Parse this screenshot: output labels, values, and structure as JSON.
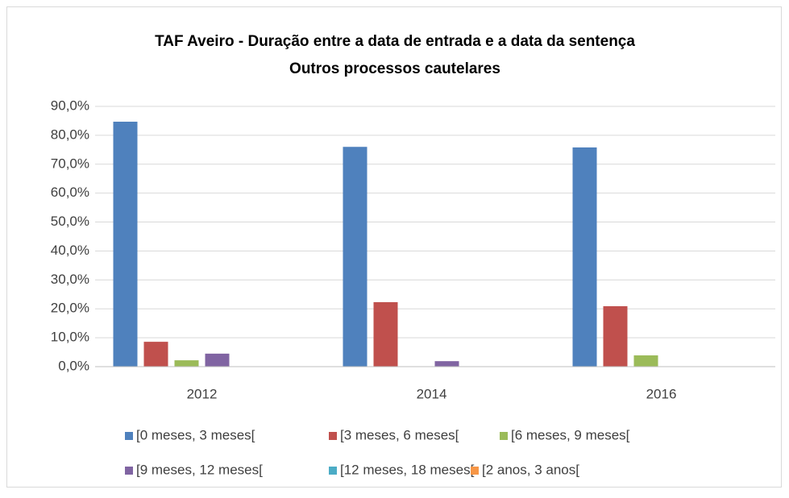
{
  "chart_data": {
    "type": "bar",
    "title": "TAF Aveiro - Duração entre a data de entrada e a data da sentença",
    "subtitle": "Outros processos cautelares",
    "categories": [
      "2012",
      "2014",
      "2016"
    ],
    "series": [
      {
        "name": "[0 meses, 3 meses[",
        "color": "#4f81bd",
        "values": [
          84.7,
          76.0,
          75.8
        ]
      },
      {
        "name": "[3 meses, 6 meses[",
        "color": "#c0504d",
        "values": [
          8.6,
          22.3,
          20.9
        ]
      },
      {
        "name": "[6 meses, 9 meses[",
        "color": "#9bbb59",
        "values": [
          2.2,
          0,
          3.9
        ]
      },
      {
        "name": "[9 meses, 12 meses[",
        "color": "#8064a2",
        "values": [
          4.5,
          1.9,
          0
        ]
      },
      {
        "name": "[12 meses, 18 meses[",
        "color": "#4bacc6",
        "values": [
          0,
          0,
          0
        ]
      },
      {
        "name": "[2 anos, 3 anos[",
        "color": "#f79646",
        "values": [
          0,
          0,
          0
        ]
      }
    ],
    "ylim": [
      0,
      90
    ],
    "yticks": [
      {
        "value": 0,
        "label": "0,0%"
      },
      {
        "value": 10,
        "label": "10,0%"
      },
      {
        "value": 20,
        "label": "20,0%"
      },
      {
        "value": 30,
        "label": "30,0%"
      },
      {
        "value": 40,
        "label": "40,0%"
      },
      {
        "value": 50,
        "label": "50,0%"
      },
      {
        "value": 60,
        "label": "60,0%"
      },
      {
        "value": 70,
        "label": "70,0%"
      },
      {
        "value": 80,
        "label": "80,0%"
      },
      {
        "value": 90,
        "label": "90,0%"
      }
    ],
    "grid": true,
    "legend": "bottom"
  }
}
